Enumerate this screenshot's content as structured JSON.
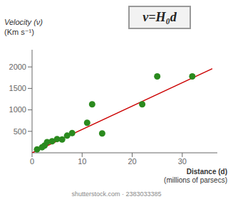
{
  "chart_data": {
    "type": "scatter",
    "xlabel": "Distance (d)\n(millions of parsecs)",
    "ylabel": "Velocity (ν)\n(Km s⁻¹)",
    "annotations": [
      "ν=H₀d",
      "shutterstock.com · 2383033385"
    ],
    "series": [
      {
        "type": "line",
        "color": "#cc0000",
        "x": [
          0,
          36
        ],
        "values": [
          0,
          1960
        ]
      },
      {
        "type": "scatter",
        "color": "#2a8a1e",
        "x": [
          1,
          2,
          2.5,
          3,
          4,
          5,
          6,
          7,
          8,
          11,
          12,
          14,
          22,
          25,
          32
        ],
        "values": [
          80,
          130,
          170,
          250,
          270,
          320,
          310,
          400,
          460,
          700,
          1130,
          450,
          1130,
          1780,
          1780
        ]
      }
    ],
    "xlim": [
      0,
      37
    ],
    "ylim": [
      0,
      2400
    ],
    "xticks": [
      0,
      10,
      20,
      30
    ],
    "yticks": [
      500,
      1000,
      1500,
      2000
    ],
    "grid": false
  }
}
